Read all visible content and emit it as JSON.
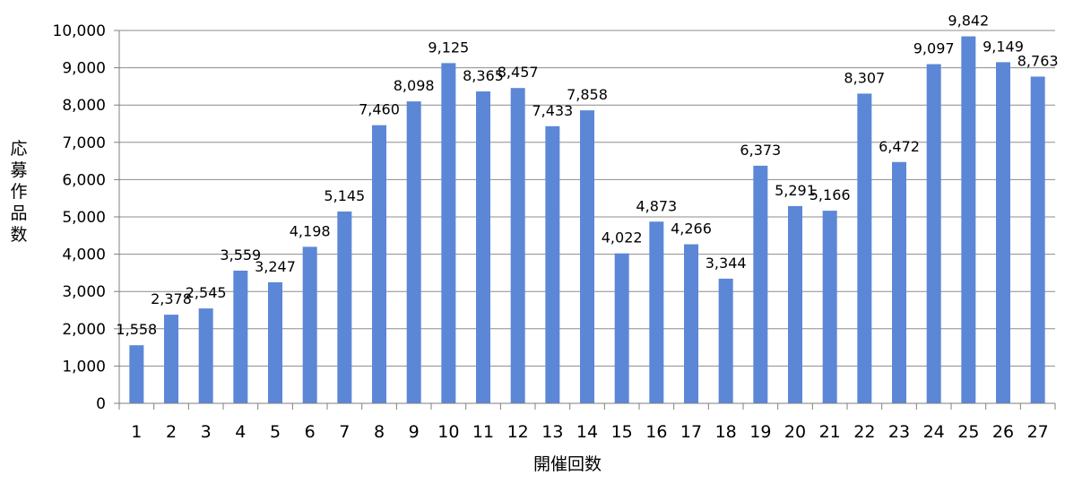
{
  "chart_data": {
    "type": "bar",
    "title": "",
    "xlabel": "開催回数",
    "ylabel": "応募作品数",
    "categories": [
      "1",
      "2",
      "3",
      "4",
      "5",
      "6",
      "7",
      "8",
      "9",
      "10",
      "11",
      "12",
      "13",
      "14",
      "15",
      "16",
      "17",
      "18",
      "19",
      "20",
      "21",
      "22",
      "23",
      "24",
      "25",
      "26",
      "27"
    ],
    "values": [
      1558,
      2378,
      2545,
      3559,
      3247,
      4198,
      5145,
      7460,
      8098,
      9125,
      8365,
      8457,
      7433,
      7858,
      4022,
      4873,
      4266,
      3344,
      6373,
      5291,
      5166,
      8307,
      6472,
      9097,
      9842,
      9149,
      8763
    ],
    "data_labels": [
      "1,558",
      "2,378",
      "2,545",
      "3,559",
      "3,247",
      "4,198",
      "5,145",
      "7,460",
      "8,098",
      "9,125",
      "8,365",
      "8,457",
      "7,433",
      "7,858",
      "4,022",
      "4,873",
      "4,266",
      "3,344",
      "6,373",
      "5,291",
      "5,166",
      "8,307",
      "6,472",
      "9,097",
      "9,842",
      "9,149",
      "8,763"
    ],
    "ylim": [
      0,
      10000
    ],
    "y_ticks": [
      0,
      1000,
      2000,
      3000,
      4000,
      5000,
      6000,
      7000,
      8000,
      9000,
      10000
    ],
    "y_tick_labels": [
      "0",
      "1,000",
      "2,000",
      "3,000",
      "4,000",
      "5,000",
      "6,000",
      "7,000",
      "8,000",
      "9,000",
      "10,000"
    ],
    "grid": true,
    "legend": "none",
    "colors": {
      "bar": "#5B87D6",
      "grid": "#8C8C8C",
      "axis": "#7F7F7F",
      "text": "#000000"
    }
  }
}
